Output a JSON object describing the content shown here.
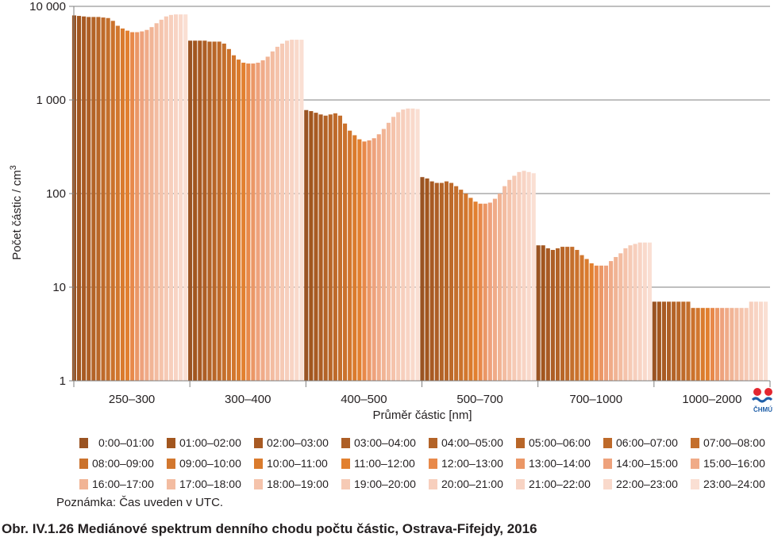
{
  "chart_data": {
    "type": "bar",
    "yscale": "log",
    "ylim": [
      1,
      10000
    ],
    "yticks": [
      {
        "value": 1,
        "label": "1"
      },
      {
        "value": 10,
        "label": "10"
      },
      {
        "value": 100,
        "label": "100"
      },
      {
        "value": 1000,
        "label": "1 000"
      },
      {
        "value": 10000,
        "label": "10 000"
      }
    ],
    "ylabel": "Počet částic / cm",
    "ylabel_sup": "3",
    "xlabel": "Průměr částic [nm]",
    "grid": "horizontal",
    "legend_position": "bottom",
    "categories": [
      "250–300",
      "300–400",
      "400–500",
      "500–700",
      "700–1000",
      "1000–2000"
    ],
    "series": [
      {
        "name": "0:00–01:00",
        "color": "#9a5322",
        "values": [
          8000,
          4300,
          780,
          150,
          28,
          7
        ]
      },
      {
        "name": "01:00–02:00",
        "color": "#a2561f",
        "values": [
          7900,
          4300,
          760,
          145,
          28,
          7
        ]
      },
      {
        "name": "02:00–03:00",
        "color": "#a85a23",
        "values": [
          7800,
          4300,
          730,
          135,
          26,
          7
        ]
      },
      {
        "name": "03:00–04:00",
        "color": "#ad5e25",
        "values": [
          7700,
          4300,
          700,
          130,
          25,
          7
        ]
      },
      {
        "name": "04:00–05:00",
        "color": "#b36327",
        "values": [
          7700,
          4200,
          680,
          130,
          26,
          7
        ]
      },
      {
        "name": "05:00–06:00",
        "color": "#b86628",
        "values": [
          7700,
          4200,
          700,
          135,
          27,
          7
        ]
      },
      {
        "name": "06:00–07:00",
        "color": "#be6a2a",
        "values": [
          7600,
          4200,
          720,
          130,
          27,
          7
        ]
      },
      {
        "name": "07:00–08:00",
        "color": "#c46f2c",
        "values": [
          7500,
          4000,
          680,
          120,
          27,
          7
        ]
      },
      {
        "name": "08:00–09:00",
        "color": "#cb722c",
        "values": [
          7000,
          3500,
          560,
          110,
          25,
          6
        ]
      },
      {
        "name": "09:00–10:00",
        "color": "#d2772e",
        "values": [
          6200,
          3000,
          470,
          100,
          22,
          6
        ]
      },
      {
        "name": "10:00–11:00",
        "color": "#da7b2d",
        "values": [
          5800,
          2700,
          420,
          90,
          20,
          6
        ]
      },
      {
        "name": "11:00–12:00",
        "color": "#e2802f",
        "values": [
          5500,
          2500,
          380,
          82,
          18,
          6
        ]
      },
      {
        "name": "12:00–13:00",
        "color": "#e8894a",
        "values": [
          5300,
          2450,
          360,
          78,
          17,
          6
        ]
      },
      {
        "name": "13:00–14:00",
        "color": "#eb9766",
        "values": [
          5300,
          2450,
          370,
          78,
          17,
          6
        ]
      },
      {
        "name": "14:00–15:00",
        "color": "#eea27c",
        "values": [
          5400,
          2500,
          390,
          80,
          17,
          6
        ]
      },
      {
        "name": "15:00–16:00",
        "color": "#f0ab88",
        "values": [
          5600,
          2650,
          430,
          88,
          19,
          6
        ]
      },
      {
        "name": "16:00–17:00",
        "color": "#f1b495",
        "values": [
          6000,
          2900,
          490,
          100,
          21,
          6
        ]
      },
      {
        "name": "17:00–18:00",
        "color": "#f3bca1",
        "values": [
          6600,
          3300,
          570,
          120,
          23,
          6
        ]
      },
      {
        "name": "18:00–19:00",
        "color": "#f5c3ab",
        "values": [
          7200,
          3700,
          660,
          140,
          26,
          6
        ]
      },
      {
        "name": "19:00–20:00",
        "color": "#f6cab5",
        "values": [
          7800,
          4000,
          740,
          155,
          28,
          6
        ]
      },
      {
        "name": "20:00–21:00",
        "color": "#f7cfbd",
        "values": [
          8100,
          4300,
          790,
          170,
          29,
          7
        ]
      },
      {
        "name": "21:00–22:00",
        "color": "#f8d4c4",
        "values": [
          8200,
          4400,
          810,
          175,
          30,
          7
        ]
      },
      {
        "name": "22:00–23:00",
        "color": "#f9d9cb",
        "values": [
          8200,
          4400,
          810,
          170,
          30,
          7
        ]
      },
      {
        "name": "23:00–24:00",
        "color": "#fadfd3",
        "values": [
          8200,
          4400,
          800,
          165,
          30,
          7
        ]
      }
    ]
  },
  "logo_text": "ČHMÚ",
  "note": "Poznámka: Čas uveden v UTC.",
  "caption": "Obr. IV.1.26  Mediánové spektrum denního chodu počtu částic, Ostrava-Fifejdy, 2016"
}
